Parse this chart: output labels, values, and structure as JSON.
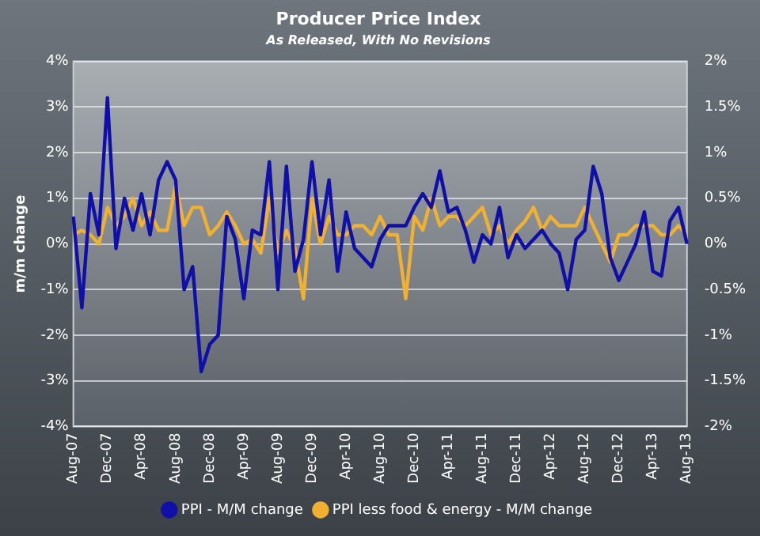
{
  "chart_data": {
    "type": "line",
    "title": "Producer Price Index",
    "subtitle": "As Released, With No Revisions",
    "ylabel": "m/m change",
    "categories": [
      "Aug-07",
      null,
      null,
      null,
      "Dec-07",
      null,
      null,
      null,
      "Apr-08",
      null,
      null,
      null,
      "Aug-08",
      null,
      null,
      null,
      "Dec-08",
      null,
      null,
      null,
      "Apr-09",
      null,
      null,
      null,
      "Aug-09",
      null,
      null,
      null,
      "Dec-09",
      null,
      null,
      null,
      "Apr-10",
      null,
      null,
      null,
      "Aug-10",
      null,
      null,
      null,
      "Dec-10",
      null,
      null,
      null,
      "Apr-11",
      null,
      null,
      null,
      "Aug-11",
      null,
      null,
      null,
      "Dec-11",
      null,
      null,
      null,
      "Apr-12",
      null,
      null,
      null,
      "Aug-12",
      null,
      null,
      null,
      "Dec-12",
      null,
      null,
      null,
      "Apr-13",
      null,
      null,
      null,
      "Aug-13"
    ],
    "series": [
      {
        "name": "PPI - M/M change",
        "color": "#1010a8",
        "values": [
          0.6,
          -1.4,
          1.1,
          0.2,
          3.2,
          -0.1,
          1.0,
          0.3,
          1.1,
          0.2,
          1.4,
          1.8,
          1.4,
          -1.0,
          -0.5,
          -2.8,
          -2.2,
          -2.0,
          0.6,
          0.1,
          -1.2,
          0.3,
          0.2,
          1.8,
          -1.0,
          1.7,
          -0.6,
          0.1,
          1.8,
          0.2,
          1.4,
          -0.6,
          0.7,
          -0.1,
          -0.3,
          -0.5,
          0.1,
          0.4,
          0.4,
          0.4,
          0.8,
          1.1,
          0.8,
          1.6,
          0.7,
          0.8,
          0.3,
          -0.4,
          0.2,
          0,
          0.8,
          -0.3,
          0.2,
          -0.1,
          0.1,
          0.3,
          0,
          -0.2,
          -1.0,
          0.1,
          0.3,
          1.7,
          1.1,
          -0.3,
          -0.8,
          -0.4,
          0,
          0.7,
          -0.6,
          -0.7,
          0.5,
          0.8,
          0
        ]
      },
      {
        "name": "PPI less food & energy - M/M change",
        "color": "#f0b030",
        "axis": "y2",
        "values": [
          0.1,
          0.15,
          0.1,
          0,
          0.4,
          0.2,
          0.3,
          0.5,
          0.2,
          0.35,
          0.15,
          0.15,
          0.65,
          0.2,
          0.4,
          0.4,
          0.1,
          0.2,
          0.35,
          0.2,
          0,
          0.05,
          -0.1,
          0.5,
          -0.1,
          0.15,
          -0.05,
          -0.6,
          0.5,
          0,
          0.3,
          0.1,
          0.1,
          0.2,
          0.2,
          0.1,
          0.3,
          0.1,
          0.1,
          -0.6,
          0.3,
          0.15,
          0.5,
          0.2,
          0.3,
          0.3,
          0.2,
          0.3,
          0.4,
          0.1,
          0.2,
          0,
          0.15,
          0.25,
          0.4,
          0.15,
          0.3,
          0.2,
          0.2,
          0.2,
          0.4,
          0.2,
          0,
          -0.2,
          0.1,
          0.1,
          0.2,
          0.2,
          0.2,
          0.1,
          0.1,
          0.2,
          0.1
        ]
      }
    ],
    "ylim": [
      -4,
      4
    ],
    "yticks": [
      {
        "value": -4,
        "label": "-4%"
      },
      {
        "value": -3,
        "label": "-3%"
      },
      {
        "value": -2,
        "label": "-2%"
      },
      {
        "value": -1,
        "label": "-1%"
      },
      {
        "value": 0,
        "label": "0%"
      },
      {
        "value": 1,
        "label": "1%"
      },
      {
        "value": 2,
        "label": "2%"
      },
      {
        "value": 3,
        "label": "3%"
      },
      {
        "value": 4,
        "label": "4%"
      }
    ],
    "y2lim": [
      -2,
      2
    ],
    "y2ticks": [
      {
        "value": -2,
        "label": "-2%"
      },
      {
        "value": -1.5,
        "label": "-1.5%"
      },
      {
        "value": -1,
        "label": "-1%"
      },
      {
        "value": -0.5,
        "label": "-0.5%"
      },
      {
        "value": 0,
        "label": "0%"
      },
      {
        "value": 0.5,
        "label": "0.5%"
      },
      {
        "value": 1,
        "label": "1%"
      },
      {
        "value": 1.5,
        "label": "1.5%"
      },
      {
        "value": 2,
        "label": "2%"
      }
    ],
    "grid": "y",
    "legend": "bottom",
    "marker": "none",
    "line_style": "solid"
  }
}
